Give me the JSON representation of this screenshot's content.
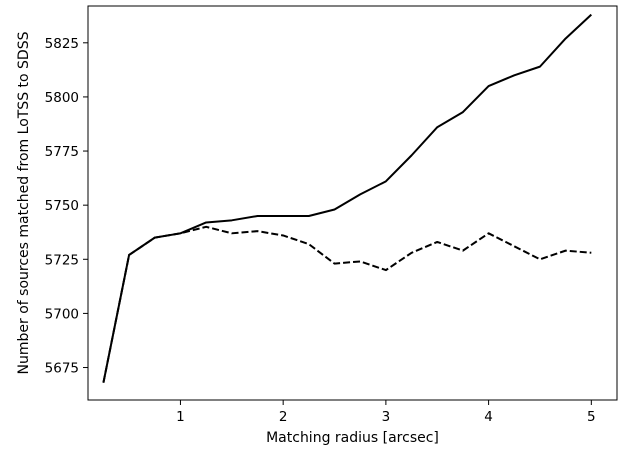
{
  "chart_data": {
    "type": "line",
    "title": "",
    "xlabel": "Matching radius [arcsec]",
    "ylabel": "Number of sources matched from LoTSS to SDSS",
    "xlim": [
      0.1,
      5.25
    ],
    "ylim": [
      5660,
      5842
    ],
    "xticks": [
      1,
      2,
      3,
      4,
      5
    ],
    "xtick_labels": [
      "1",
      "2",
      "3",
      "4",
      "5"
    ],
    "yticks": [
      5675,
      5700,
      5725,
      5750,
      5775,
      5800,
      5825
    ],
    "ytick_labels": [
      "5675",
      "5700",
      "5725",
      "5750",
      "5775",
      "5800",
      "5825"
    ],
    "grid": false,
    "legend": "none",
    "x": [
      0.25,
      0.5,
      0.75,
      1.0,
      1.25,
      1.5,
      1.75,
      2.0,
      2.25,
      2.5,
      2.75,
      3.0,
      3.25,
      3.5,
      3.75,
      4.0,
      4.25,
      4.5,
      4.75,
      5.0
    ],
    "series": [
      {
        "style": "solid",
        "color": "#000000",
        "values": [
          5668,
          5727,
          5735,
          5737,
          5742,
          5743,
          5745,
          5745,
          5745,
          5748,
          5755,
          5761,
          5773,
          5786,
          5793,
          5805,
          5810,
          5814,
          5827,
          5838
        ]
      },
      {
        "style": "dashed",
        "color": "#000000",
        "values": [
          5668,
          5727,
          5735,
          5737,
          5740,
          5737,
          5738,
          5736,
          5732,
          5723,
          5724,
          5720,
          5728,
          5733,
          5729,
          5737,
          5731,
          5725,
          5729,
          5728
        ]
      }
    ]
  }
}
